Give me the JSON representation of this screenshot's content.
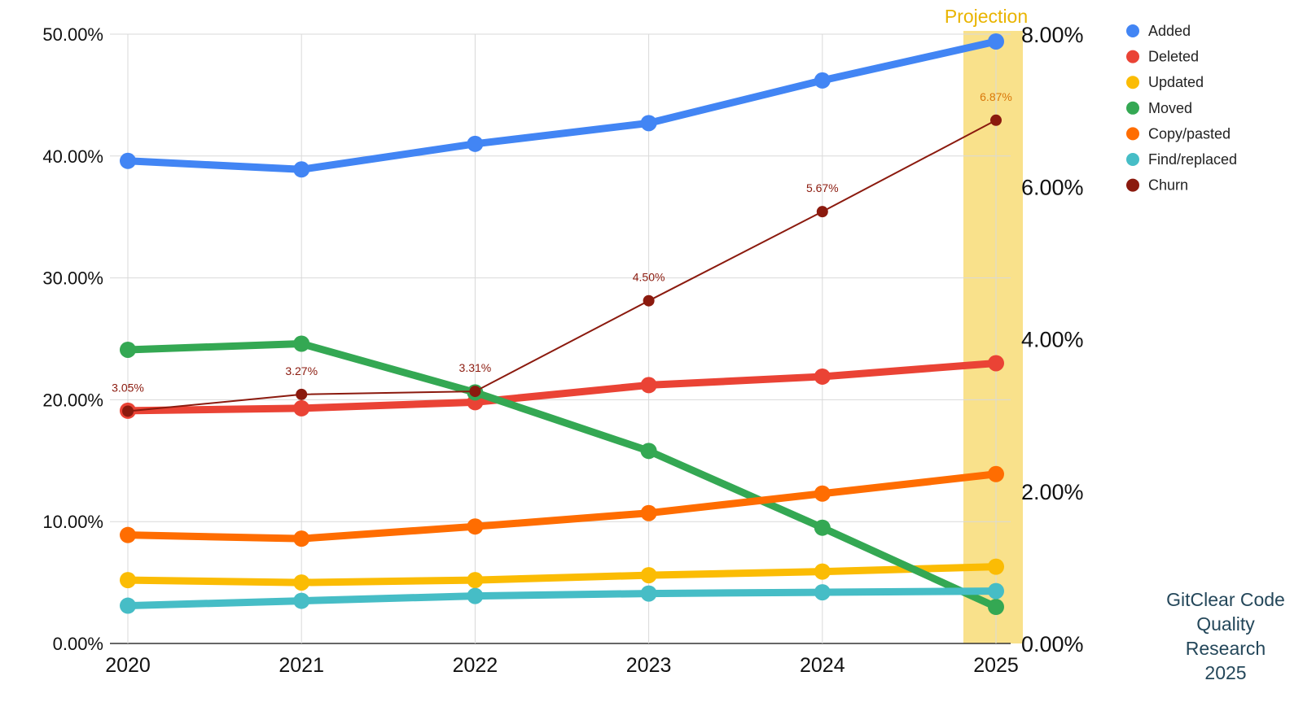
{
  "chart_data": {
    "type": "line",
    "categories": [
      "2020",
      "2021",
      "2022",
      "2023",
      "2024",
      "2025"
    ],
    "left_axis": {
      "ticks": [
        "0.00%",
        "10.00%",
        "20.00%",
        "30.00%",
        "40.00%",
        "50.00%"
      ],
      "ylim": [
        0,
        50
      ]
    },
    "right_axis": {
      "ticks": [
        "0.00%",
        "2.00%",
        "4.00%",
        "6.00%",
        "8.00%"
      ],
      "ylim": [
        0,
        8
      ]
    },
    "projection_label": "Projection",
    "highlight_category": "2025",
    "legend_position": "top-right",
    "grid": true,
    "series": [
      {
        "name": "Added",
        "axis": "left",
        "color": "#4285f4",
        "values": [
          39.6,
          38.9,
          41.0,
          42.7,
          46.2,
          49.4
        ]
      },
      {
        "name": "Deleted",
        "axis": "left",
        "color": "#ea4335",
        "values": [
          19.1,
          19.3,
          19.8,
          21.2,
          21.9,
          23.0
        ]
      },
      {
        "name": "Updated",
        "axis": "left",
        "color": "#fbbc04",
        "values": [
          5.2,
          5.0,
          5.2,
          5.6,
          5.9,
          6.3
        ]
      },
      {
        "name": "Moved",
        "axis": "left",
        "color": "#34a853",
        "values": [
          24.1,
          24.6,
          20.6,
          15.8,
          9.5,
          3.0
        ]
      },
      {
        "name": "Copy/pasted",
        "axis": "left",
        "color": "#ff6d01",
        "values": [
          8.9,
          8.6,
          9.6,
          10.7,
          12.3,
          13.9
        ]
      },
      {
        "name": "Find/replaced",
        "axis": "left",
        "color": "#46bdc6",
        "values": [
          3.1,
          3.5,
          3.9,
          4.1,
          4.2,
          4.3
        ]
      },
      {
        "name": "Churn",
        "axis": "right",
        "color": "#8b1a0e",
        "values": [
          3.05,
          3.27,
          3.31,
          4.5,
          5.67,
          6.87
        ],
        "labels": [
          "3.05%",
          "3.27%",
          "3.31%",
          "4.50%",
          "5.67%",
          "6.87%"
        ]
      }
    ]
  },
  "credit": {
    "line1": "GitClear Code",
    "line2": "Quality",
    "line3": "Research",
    "line4": "2025"
  }
}
